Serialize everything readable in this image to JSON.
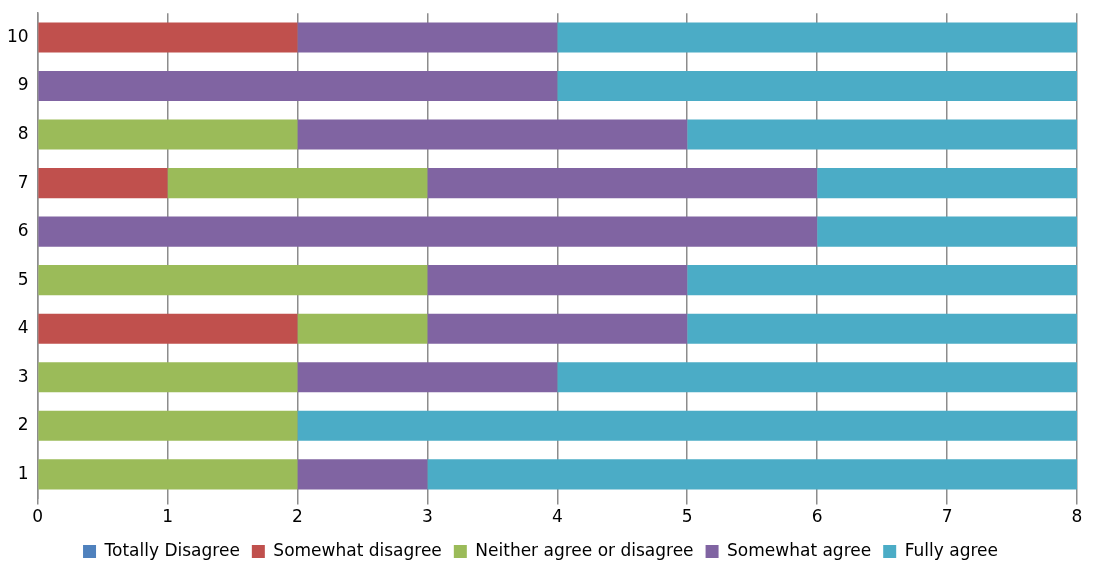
{
  "chart_data": {
    "type": "bar",
    "orientation": "horizontal",
    "stacked": true,
    "categories": [
      "10",
      "9",
      "8",
      "7",
      "6",
      "5",
      "4",
      "3",
      "2",
      "1"
    ],
    "series": [
      {
        "name": "Totally Disagree",
        "color": "#4f81bd",
        "values": [
          0,
          0,
          0,
          0,
          0,
          0,
          0,
          0,
          0,
          0
        ]
      },
      {
        "name": "Somewhat disagree",
        "color": "#c0504d",
        "values": [
          2,
          0,
          0,
          1,
          0,
          0,
          2,
          0,
          0,
          0
        ]
      },
      {
        "name": "Neither agree or disagree",
        "color": "#9bbb59",
        "values": [
          0,
          0,
          2,
          2,
          0,
          3,
          1,
          2,
          2,
          2
        ]
      },
      {
        "name": "Somewhat agree",
        "color": "#8064a2",
        "values": [
          2,
          4,
          3,
          3,
          6,
          2,
          2,
          2,
          0,
          1
        ]
      },
      {
        "name": "Fully agree",
        "color": "#4bacc6",
        "values": [
          4,
          4,
          3,
          2,
          2,
          3,
          3,
          4,
          6,
          5
        ]
      }
    ],
    "xlim": [
      0,
      8
    ],
    "xticks": [
      0,
      1,
      2,
      3,
      4,
      5,
      6,
      7,
      8
    ],
    "grid": "x",
    "legend": "bottom"
  }
}
